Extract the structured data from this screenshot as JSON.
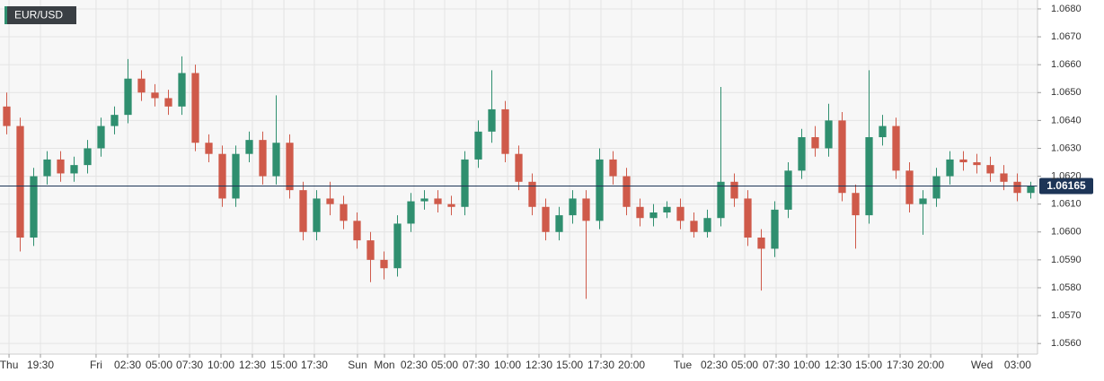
{
  "chart_data": {
    "type": "candlestick",
    "title": "EUR/USD",
    "up_color": "#2f8f6f",
    "down_color": "#cf5a4a",
    "price_line_color": "#1d3557",
    "last_price": 1.06165,
    "grid": true,
    "x": [
      0,
      1,
      2,
      3,
      4,
      5,
      6,
      7,
      8,
      9,
      10,
      11,
      12,
      13,
      14,
      15,
      16,
      17,
      18,
      19,
      20,
      21,
      22,
      23,
      24,
      25,
      26,
      27,
      28,
      29,
      30,
      31,
      32,
      33,
      34,
      35,
      36,
      37,
      38,
      39,
      40,
      41,
      42,
      43,
      44,
      45,
      46,
      47,
      48,
      49,
      50,
      51,
      52,
      53,
      54,
      55,
      56,
      57,
      58,
      59,
      60,
      61,
      62,
      63,
      64,
      65,
      66,
      67,
      68,
      69,
      70,
      71,
      72,
      73,
      74,
      75,
      76
    ],
    "open": [
      1.0645,
      1.0638,
      1.0598,
      1.062,
      1.0626,
      1.0621,
      1.0624,
      1.063,
      1.0638,
      1.0642,
      1.0655,
      1.065,
      1.0648,
      1.0645,
      1.0657,
      1.0632,
      1.0628,
      1.0612,
      1.0628,
      1.0633,
      1.062,
      1.0632,
      1.0615,
      1.06,
      1.0612,
      1.061,
      1.0604,
      1.0597,
      1.059,
      1.0587,
      1.0603,
      1.0611,
      1.0612,
      1.061,
      1.0609,
      1.0626,
      1.0636,
      1.0644,
      1.0628,
      1.0618,
      1.0609,
      1.06,
      1.0606,
      1.0612,
      1.0604,
      1.0626,
      1.062,
      1.0609,
      1.0605,
      1.0607,
      1.0609,
      1.0604,
      1.06,
      1.0605,
      1.0618,
      1.0612,
      1.0598,
      1.0594,
      1.0608,
      1.0622,
      1.0634,
      1.063,
      1.064,
      1.0614,
      1.0606,
      1.0634,
      1.0638,
      1.0622,
      1.061,
      1.0612,
      1.062,
      1.0626,
      1.0625,
      1.0624,
      1.0621,
      1.0618,
      1.0614
    ],
    "high": [
      1.065,
      1.0641,
      1.0623,
      1.0629,
      1.0629,
      1.0627,
      1.0633,
      1.0641,
      1.0645,
      1.0662,
      1.0658,
      1.0653,
      1.0651,
      1.0663,
      1.066,
      1.0635,
      1.0631,
      1.0631,
      1.0636,
      1.0636,
      1.0649,
      1.0635,
      1.0618,
      1.0615,
      1.0618,
      1.0613,
      1.0607,
      1.06,
      1.0593,
      1.0606,
      1.0614,
      1.0615,
      1.0615,
      1.0613,
      1.0629,
      1.064,
      1.0658,
      1.0647,
      1.0631,
      1.0621,
      1.0612,
      1.0609,
      1.0615,
      1.0615,
      1.063,
      1.0629,
      1.0623,
      1.0612,
      1.061,
      1.0611,
      1.0612,
      1.0607,
      1.0608,
      1.0652,
      1.0621,
      1.0615,
      1.0601,
      1.0611,
      1.0625,
      1.0637,
      1.0638,
      1.0646,
      1.0643,
      1.0617,
      1.0658,
      1.0642,
      1.0641,
      1.0625,
      1.0615,
      1.0623,
      1.0629,
      1.0629,
      1.0628,
      1.0627,
      1.0624,
      1.0621,
      1.0618
    ],
    "low": [
      1.0635,
      1.0593,
      1.0595,
      1.0617,
      1.0618,
      1.0618,
      1.0621,
      1.0627,
      1.0635,
      1.0639,
      1.0647,
      1.0645,
      1.0642,
      1.0642,
      1.0629,
      1.0625,
      1.0609,
      1.0609,
      1.0625,
      1.0617,
      1.0617,
      1.0612,
      1.0597,
      1.0597,
      1.0606,
      1.0601,
      1.0594,
      1.0582,
      1.0583,
      1.0584,
      1.06,
      1.0608,
      1.0607,
      1.0606,
      1.0606,
      1.0623,
      1.0632,
      1.0625,
      1.0615,
      1.0606,
      1.0597,
      1.0597,
      1.0603,
      1.0576,
      1.0601,
      1.0617,
      1.0606,
      1.0602,
      1.0602,
      1.0605,
      1.0601,
      1.0598,
      1.0598,
      1.0602,
      1.0609,
      1.0595,
      1.0579,
      1.0591,
      1.0605,
      1.0619,
      1.0627,
      1.0627,
      1.0611,
      1.0594,
      1.0603,
      1.0631,
      1.0619,
      1.0607,
      1.0599,
      1.0609,
      1.0617,
      1.0622,
      1.0621,
      1.0618,
      1.0615,
      1.0611,
      1.0612
    ],
    "close": [
      1.0638,
      1.0598,
      1.062,
      1.0626,
      1.0621,
      1.0624,
      1.063,
      1.0638,
      1.0642,
      1.0655,
      1.065,
      1.0648,
      1.0645,
      1.0657,
      1.0632,
      1.0628,
      1.0612,
      1.0628,
      1.0633,
      1.062,
      1.0632,
      1.0615,
      1.06,
      1.0612,
      1.061,
      1.0604,
      1.0597,
      1.059,
      1.0587,
      1.0603,
      1.0611,
      1.0612,
      1.061,
      1.0609,
      1.0626,
      1.0636,
      1.0644,
      1.0628,
      1.0618,
      1.0609,
      1.06,
      1.0606,
      1.0612,
      1.0604,
      1.0626,
      1.062,
      1.0609,
      1.0605,
      1.0607,
      1.0609,
      1.0604,
      1.06,
      1.0605,
      1.0618,
      1.0612,
      1.0598,
      1.0594,
      1.0608,
      1.0622,
      1.0634,
      1.063,
      1.064,
      1.0614,
      1.0606,
      1.0634,
      1.0638,
      1.0622,
      1.061,
      1.0612,
      1.062,
      1.0626,
      1.0625,
      1.0624,
      1.0621,
      1.0618,
      1.0614,
      1.06165
    ],
    "xlim": [
      -0.5,
      76.5
    ],
    "xticks": [
      {
        "value": 0.17,
        "label": "Thu"
      },
      {
        "value": 2.5,
        "label": "19:30"
      },
      {
        "value": 6.63,
        "label": "Fri"
      },
      {
        "value": 8.97,
        "label": "02:30"
      },
      {
        "value": 11.3,
        "label": "05:00"
      },
      {
        "value": 13.57,
        "label": "07:30"
      },
      {
        "value": 15.9,
        "label": "10:00"
      },
      {
        "value": 18.23,
        "label": "12:30"
      },
      {
        "value": 20.57,
        "label": "15:00"
      },
      {
        "value": 22.83,
        "label": "17:30"
      },
      {
        "value": 26.03,
        "label": "Sun"
      },
      {
        "value": 28.03,
        "label": "Mon"
      },
      {
        "value": 30.23,
        "label": "02:30"
      },
      {
        "value": 32.5,
        "label": "05:00"
      },
      {
        "value": 34.83,
        "label": "07:30"
      },
      {
        "value": 37.17,
        "label": "10:00"
      },
      {
        "value": 39.5,
        "label": "12:30"
      },
      {
        "value": 41.77,
        "label": "15:00"
      },
      {
        "value": 44.1,
        "label": "17:30"
      },
      {
        "value": 46.37,
        "label": "20:00"
      },
      {
        "value": 50.17,
        "label": "Tue"
      },
      {
        "value": 52.5,
        "label": "02:30"
      },
      {
        "value": 54.77,
        "label": "05:00"
      },
      {
        "value": 57.1,
        "label": "07:30"
      },
      {
        "value": 59.37,
        "label": "10:00"
      },
      {
        "value": 61.7,
        "label": "12:30"
      },
      {
        "value": 63.97,
        "label": "15:00"
      },
      {
        "value": 66.3,
        "label": "17:30"
      },
      {
        "value": 68.57,
        "label": "20:00"
      },
      {
        "value": 72.37,
        "label": "Wed"
      },
      {
        "value": 75.03,
        "label": "03:00"
      }
    ],
    "ylim": [
      1.05562,
      1.06832
    ],
    "yticks": [
      {
        "value": 1.056,
        "label": "1.0560"
      },
      {
        "value": 1.057,
        "label": "1.0570"
      },
      {
        "value": 1.058,
        "label": "1.0580"
      },
      {
        "value": 1.059,
        "label": "1.0590"
      },
      {
        "value": 1.06,
        "label": "1.0600"
      },
      {
        "value": 1.061,
        "label": "1.0610"
      },
      {
        "value": 1.062,
        "label": "1.0620"
      },
      {
        "value": 1.063,
        "label": "1.0630"
      },
      {
        "value": 1.064,
        "label": "1.0640"
      },
      {
        "value": 1.065,
        "label": "1.0650"
      },
      {
        "value": 1.066,
        "label": "1.0660"
      },
      {
        "value": 1.067,
        "label": "1.0670"
      },
      {
        "value": 1.068,
        "label": "1.0680"
      }
    ]
  }
}
